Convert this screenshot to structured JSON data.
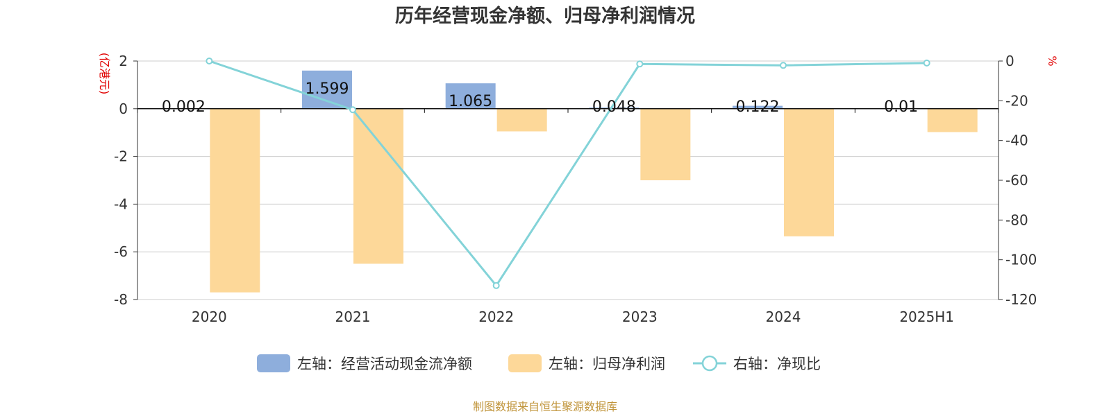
{
  "colors": {
    "series_cash": "#8eaedc",
    "series_profit": "#fdd899",
    "series_ratio": "#83d3d8",
    "grid": "#cccccc",
    "axis": "#333333",
    "unit": "#e00000",
    "source": "#c0943a"
  },
  "chart_data": {
    "type": "bar",
    "title": "历年经营现金净额、归母净利润情况",
    "categories": [
      "2020",
      "2021",
      "2022",
      "2023",
      "2024",
      "2025H1"
    ],
    "left_axis": {
      "unit": "(亿港元)",
      "ylim": [
        -8,
        2
      ],
      "ticks": [
        "2",
        "0",
        "-2",
        "-4",
        "-6",
        "-8"
      ]
    },
    "right_axis": {
      "unit": "%",
      "ylim": [
        -120,
        0
      ],
      "ticks": [
        "0",
        "-20",
        "-40",
        "-60",
        "-80",
        "-100",
        "-120"
      ]
    },
    "grid": true,
    "legend_position": "bottom-center",
    "series": [
      {
        "name": "左轴：经营活动现金流净额",
        "type": "bar",
        "axis": "left",
        "values": [
          0.002,
          1.599,
          1.065,
          0.048,
          0.122,
          0.01
        ],
        "labels": [
          "0.002",
          "1.599",
          "1.065",
          "0.048",
          "0.122",
          "0.01"
        ]
      },
      {
        "name": "左轴：归母净利润",
        "type": "bar",
        "axis": "left",
        "values": [
          -7.7,
          -6.5,
          -0.95,
          -3.0,
          -5.35,
          -0.98
        ]
      },
      {
        "name": "右轴：净现比",
        "type": "line",
        "axis": "right",
        "values": [
          0.0,
          -24.5,
          -113.0,
          -1.5,
          -2.2,
          -1.0
        ]
      }
    ]
  },
  "footer": {
    "source": "制图数据来自恒生聚源数据库"
  }
}
